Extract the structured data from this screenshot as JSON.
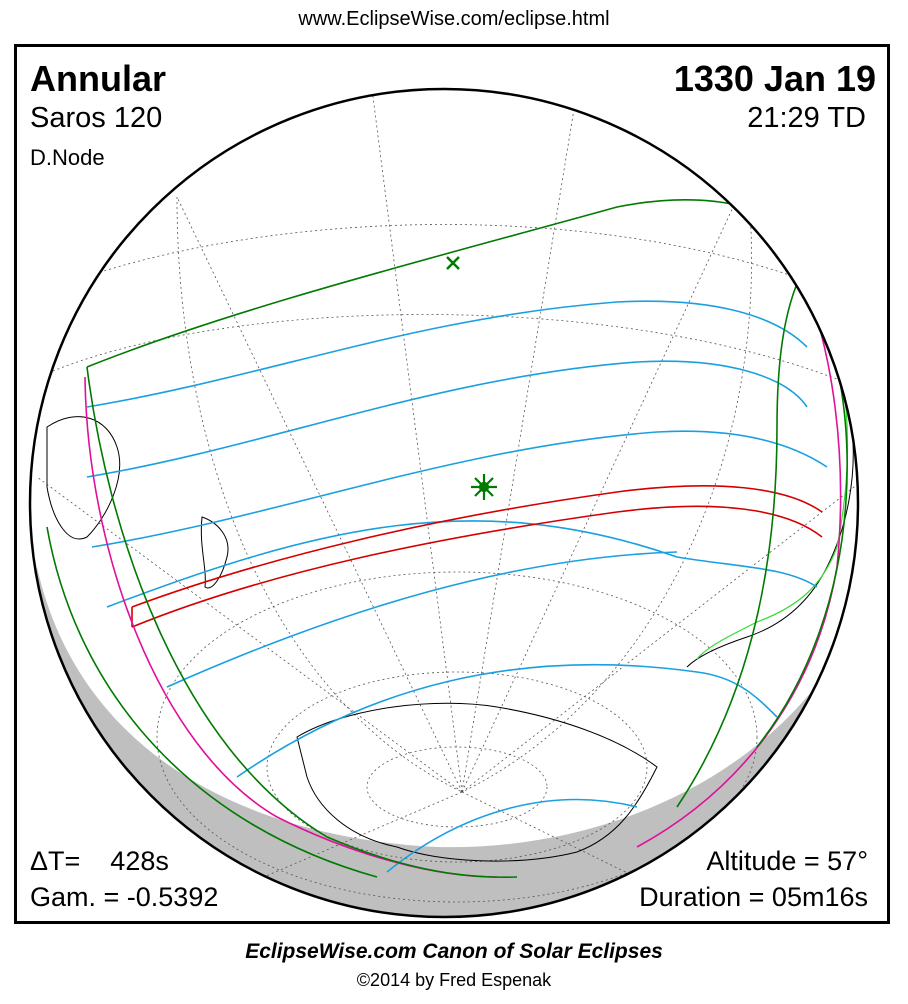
{
  "header": {
    "url": "www.EclipseWise.com/eclipse.html"
  },
  "eclipse": {
    "type": "Annular",
    "saros": "Saros 120",
    "node": "D.Node",
    "date": "1330 Jan 19",
    "time": "21:29 TD",
    "delta_t": "ΔT=    428s",
    "gamma": "Gam. = -0.5392",
    "altitude": "Altitude = 57°",
    "duration": "Duration = 05m16s"
  },
  "footer": {
    "canon": "EclipseWise.com Canon of Solar Eclipses",
    "copyright": "©2014 by Fred Espenak"
  },
  "map": {
    "colors": {
      "globe_outline": "#000000",
      "night_shade": "#bfbfbf",
      "penumbra_limits": "#007a00",
      "central_path": "#d40000",
      "magnitude_lines": "#1aa0e0",
      "rise_set_curves": "#e0109a",
      "coastline": "#000000",
      "coastline_highlight": "#33dd33",
      "grid": "#555555"
    },
    "markers": {
      "greatest_eclipse": "green-star-icon",
      "subsolar_point": "green-x-icon"
    }
  }
}
